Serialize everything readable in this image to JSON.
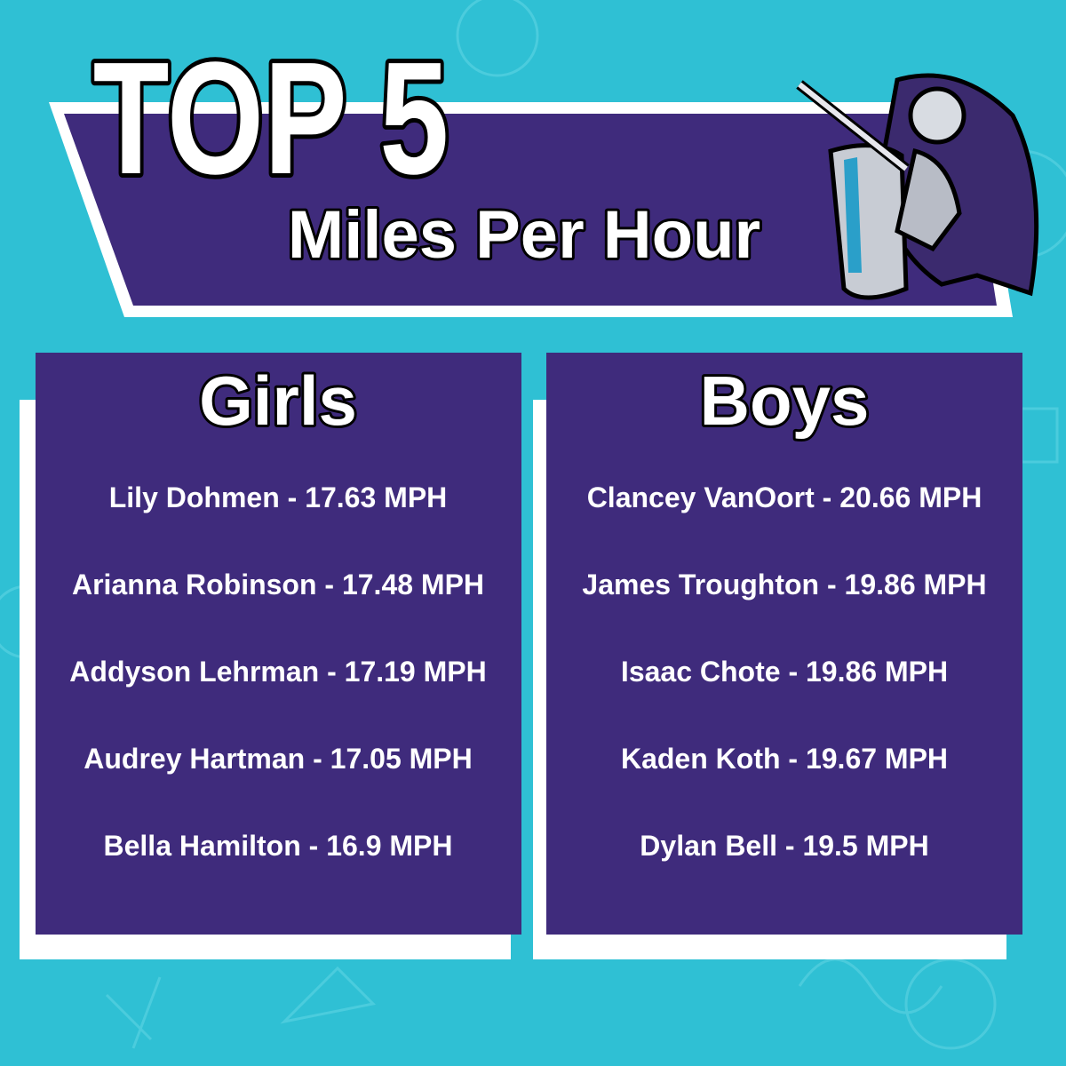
{
  "header": {
    "title": "TOP 5",
    "subtitle": "Miles Per Hour"
  },
  "columns": [
    {
      "heading": "Girls",
      "entries": [
        "Lily Dohmen - 17.63 MPH",
        "Arianna Robinson - 17.48 MPH",
        "Addyson Lehrman - 17.19 MPH",
        "Audrey Hartman - 17.05 MPH",
        "Bella Hamilton - 16.9 MPH"
      ]
    },
    {
      "heading": "Boys",
      "entries": [
        "Clancey VanOort - 20.66 MPH",
        "James Troughton - 19.86 MPH",
        "Isaac Chote - 19.86 MPH",
        "Kaden Koth - 19.67 MPH",
        "Dylan Bell - 19.5 MPH"
      ]
    }
  ]
}
